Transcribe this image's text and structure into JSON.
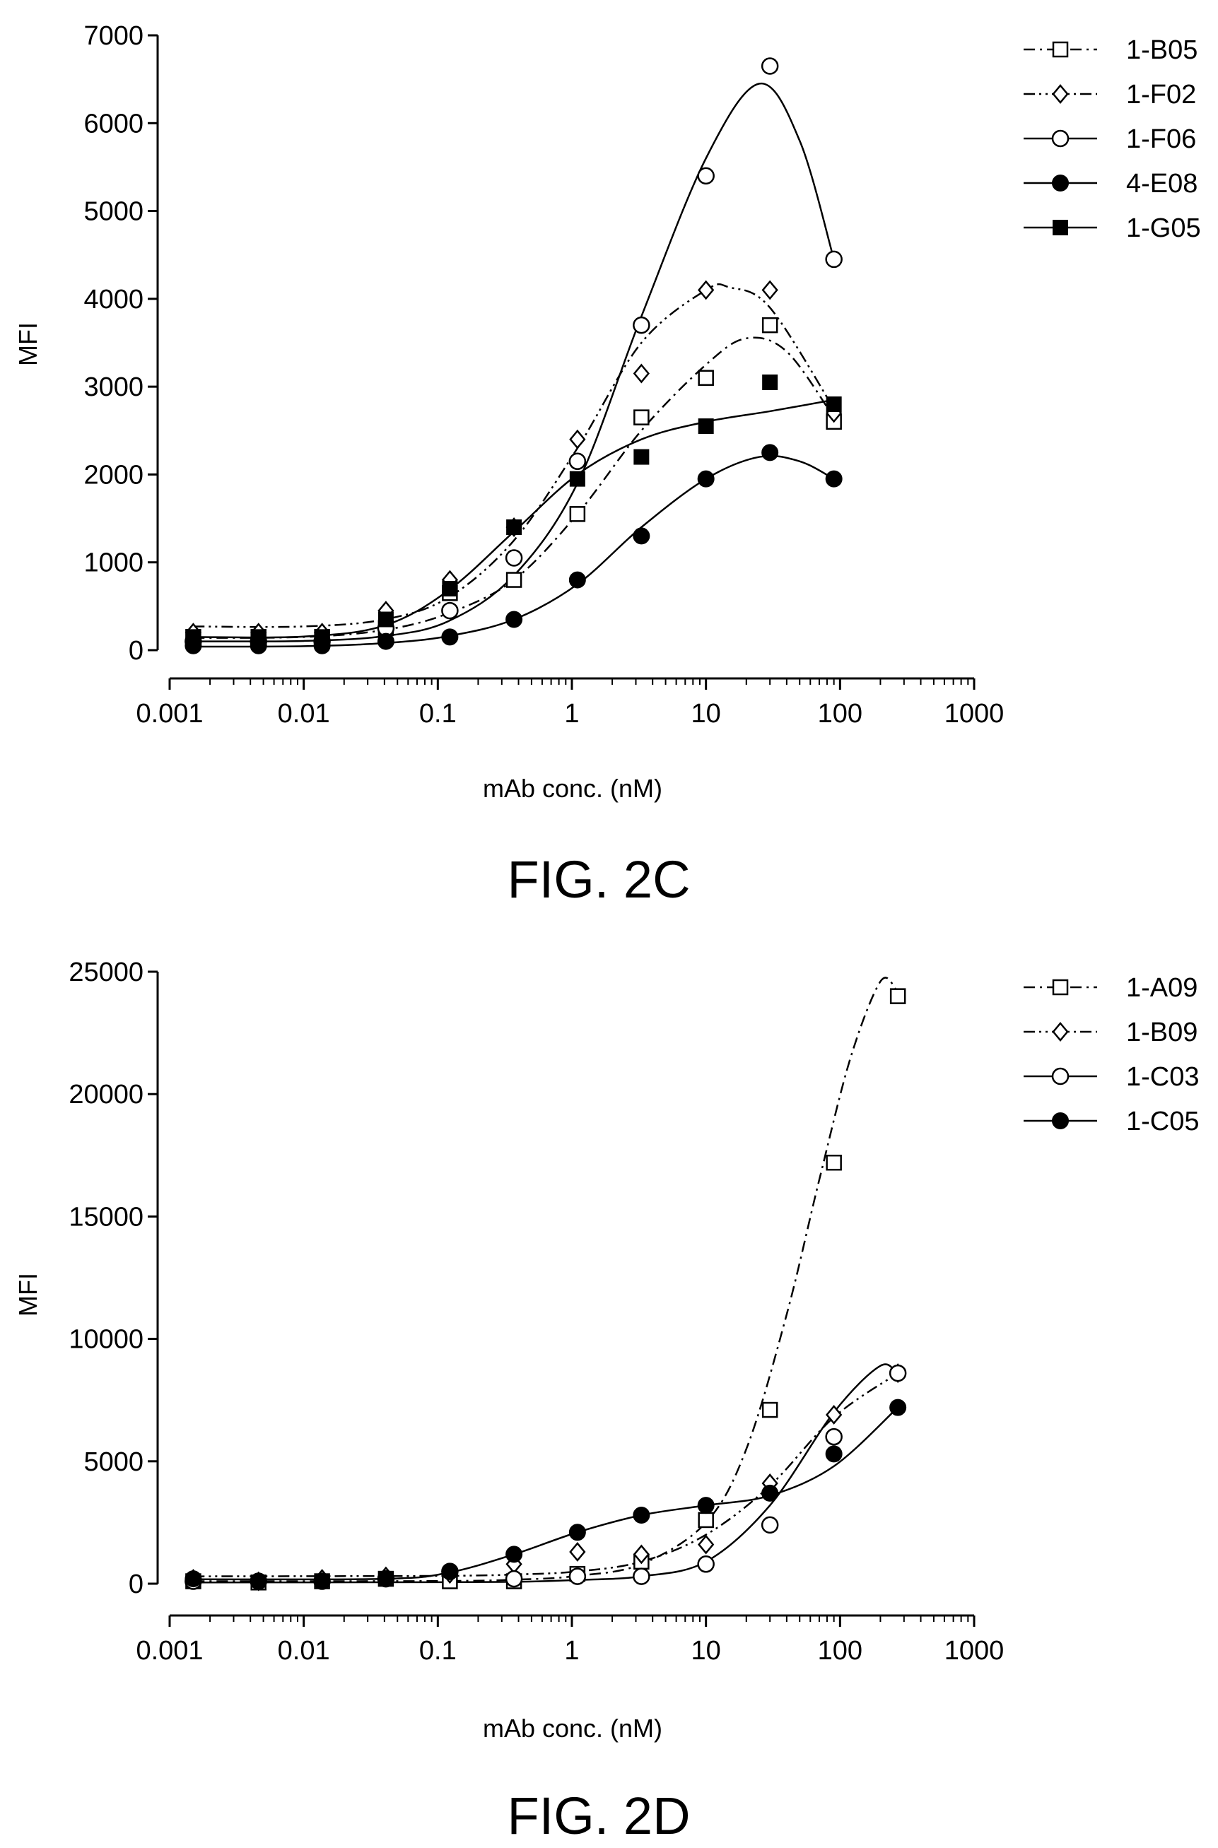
{
  "chart_data": [
    {
      "type": "scatter",
      "caption": "FIG. 2C",
      "xlabel": "mAb conc. (nM)",
      "ylabel": "MFI",
      "x_scale": "log",
      "xlim": [
        0.001,
        1000
      ],
      "ylim": [
        0,
        7000
      ],
      "x_ticks": [
        "0.001",
        "0.01",
        "0.1",
        "1",
        "10",
        "100",
        "1000"
      ],
      "y_ticks": [
        "0",
        "1000",
        "2000",
        "3000",
        "4000",
        "5000",
        "6000",
        "7000"
      ],
      "legend_position": "top-right",
      "grid": false,
      "series": [
        {
          "name": "1-B05",
          "marker": "open-square",
          "line": "dash-dot",
          "x": [
            0.0015,
            0.0046,
            0.0137,
            0.041,
            0.123,
            0.37,
            1.1,
            3.3,
            10,
            30,
            90
          ],
          "y": [
            150,
            150,
            150,
            250,
            650,
            800,
            1550,
            2650,
            3100,
            3700,
            2600
          ],
          "fit": [
            [
              0.0015,
              140
            ],
            [
              0.01,
              150
            ],
            [
              0.04,
              230
            ],
            [
              0.12,
              420
            ],
            [
              0.37,
              800
            ],
            [
              1.1,
              1550
            ],
            [
              3.3,
              2500
            ],
            [
              10,
              3250
            ],
            [
              20,
              3550
            ],
            [
              40,
              3400
            ],
            [
              90,
              2650
            ]
          ]
        },
        {
          "name": "1-F02",
          "marker": "open-diamond",
          "line": "dash-dot-dot",
          "x": [
            0.0015,
            0.0046,
            0.0137,
            0.041,
            0.123,
            0.37,
            1.1,
            3.3,
            10,
            30,
            90
          ],
          "y": [
            200,
            200,
            200,
            450,
            800,
            1400,
            2400,
            3150,
            4100,
            4100,
            2700
          ],
          "fit": [
            [
              0.0015,
              270
            ],
            [
              0.01,
              270
            ],
            [
              0.04,
              350
            ],
            [
              0.12,
              600
            ],
            [
              0.37,
              1250
            ],
            [
              1.1,
              2300
            ],
            [
              3.3,
              3500
            ],
            [
              10,
              4100
            ],
            [
              15,
              4130
            ],
            [
              30,
              3900
            ],
            [
              90,
              2750
            ]
          ]
        },
        {
          "name": "1-F06",
          "marker": "open-circle",
          "line": "solid",
          "x": [
            0.0015,
            0.0046,
            0.0137,
            0.041,
            0.123,
            0.37,
            1.1,
            3.3,
            10,
            30,
            90
          ],
          "y": [
            100,
            100,
            100,
            250,
            450,
            1050,
            2150,
            3700,
            5400,
            6650,
            4450
          ],
          "fit": [
            [
              0.0015,
              100
            ],
            [
              0.01,
              105
            ],
            [
              0.04,
              160
            ],
            [
              0.12,
              330
            ],
            [
              0.37,
              850
            ],
            [
              1.1,
              1900
            ],
            [
              3.3,
              3800
            ],
            [
              10,
              5600
            ],
            [
              25,
              6450
            ],
            [
              50,
              5800
            ],
            [
              90,
              4450
            ]
          ]
        },
        {
          "name": "4-E08",
          "marker": "filled-circle",
          "line": "solid",
          "x": [
            0.0015,
            0.0046,
            0.0137,
            0.041,
            0.123,
            0.37,
            1.1,
            3.3,
            10,
            30,
            90
          ],
          "y": [
            50,
            50,
            50,
            100,
            150,
            350,
            800,
            1300,
            1950,
            2250,
            1950
          ],
          "fit": [
            [
              0.0015,
              40
            ],
            [
              0.01,
              45
            ],
            [
              0.04,
              80
            ],
            [
              0.12,
              160
            ],
            [
              0.37,
              350
            ],
            [
              1.1,
              750
            ],
            [
              3.3,
              1400
            ],
            [
              10,
              1950
            ],
            [
              25,
              2200
            ],
            [
              50,
              2150
            ],
            [
              90,
              1950
            ]
          ]
        },
        {
          "name": "1-G05",
          "marker": "filled-square",
          "line": "solid",
          "x": [
            0.0015,
            0.0046,
            0.0137,
            0.041,
            0.123,
            0.37,
            1.1,
            3.3,
            10,
            30,
            90
          ],
          "y": [
            150,
            150,
            150,
            350,
            700,
            1400,
            1950,
            2200,
            2550,
            3050,
            2800
          ],
          "fit": [
            [
              0.0015,
              150
            ],
            [
              0.01,
              155
            ],
            [
              0.04,
              280
            ],
            [
              0.12,
              680
            ],
            [
              0.37,
              1350
            ],
            [
              1.1,
              2000
            ],
            [
              3.3,
              2400
            ],
            [
              10,
              2600
            ],
            [
              30,
              2720
            ],
            [
              90,
              2850
            ]
          ]
        }
      ]
    },
    {
      "type": "scatter",
      "caption": "FIG. 2D",
      "xlabel": "mAb conc. (nM)",
      "ylabel": "MFI",
      "x_scale": "log",
      "xlim": [
        0.001,
        1000
      ],
      "ylim": [
        0,
        25000
      ],
      "x_ticks": [
        "0.001",
        "0.01",
        "0.1",
        "1",
        "10",
        "100",
        "1000"
      ],
      "y_ticks": [
        "0",
        "5000",
        "10000",
        "15000",
        "20000",
        "25000"
      ],
      "legend_position": "top-right",
      "grid": false,
      "series": [
        {
          "name": "1-A09",
          "marker": "open-square",
          "line": "dash-dot",
          "x": [
            0.0015,
            0.0046,
            0.0137,
            0.041,
            0.123,
            0.37,
            1.1,
            3.3,
            10,
            30,
            90,
            270
          ],
          "y": [
            100,
            50,
            100,
            200,
            100,
            100,
            400,
            900,
            2600,
            7100,
            17200,
            24000
          ],
          "fit": [
            [
              0.0015,
              100
            ],
            [
              0.1,
              110
            ],
            [
              0.4,
              170
            ],
            [
              1.1,
              320
            ],
            [
              3.3,
              800
            ],
            [
              10,
              2500
            ],
            [
              20,
              5500
            ],
            [
              40,
              11000
            ],
            [
              70,
              16500
            ],
            [
              120,
              21500
            ],
            [
              200,
              24600
            ],
            [
              260,
              24300
            ]
          ]
        },
        {
          "name": "1-B09",
          "marker": "open-diamond",
          "line": "dash-dot-dot",
          "x": [
            0.0015,
            0.0046,
            0.0137,
            0.041,
            0.123,
            0.37,
            1.1,
            3.3,
            10,
            30,
            90,
            270
          ],
          "y": [
            200,
            100,
            200,
            300,
            400,
            800,
            1300,
            1200,
            1600,
            4100,
            6900,
            8600
          ],
          "fit": [
            [
              0.0015,
              300
            ],
            [
              0.1,
              320
            ],
            [
              0.4,
              380
            ],
            [
              1.1,
              500
            ],
            [
              3.3,
              900
            ],
            [
              10,
              2000
            ],
            [
              30,
              4000
            ],
            [
              90,
              6800
            ],
            [
              270,
              8600
            ]
          ]
        },
        {
          "name": "1-C03",
          "marker": "open-circle",
          "line": "solid",
          "x": [
            0.0015,
            0.0046,
            0.0137,
            0.041,
            0.123,
            0.37,
            1.1,
            3.3,
            10,
            30,
            90,
            270
          ],
          "y": [
            100,
            100,
            100,
            200,
            500,
            200,
            300,
            300,
            800,
            2400,
            6000,
            8600
          ],
          "fit": [
            [
              0.0015,
              50
            ],
            [
              0.1,
              60
            ],
            [
              0.4,
              80
            ],
            [
              1.1,
              150
            ],
            [
              3.3,
              300
            ],
            [
              10,
              900
            ],
            [
              30,
              3200
            ],
            [
              90,
              7000
            ],
            [
              200,
              8900
            ],
            [
              270,
              8500
            ]
          ]
        },
        {
          "name": "1-C05",
          "marker": "filled-circle",
          "line": "solid",
          "x": [
            0.0015,
            0.0046,
            0.0137,
            0.041,
            0.123,
            0.37,
            1.1,
            3.3,
            10,
            30,
            90,
            270
          ],
          "y": [
            200,
            100,
            100,
            200,
            500,
            1200,
            2100,
            2800,
            3200,
            3700,
            5300,
            7200
          ],
          "fit": [
            [
              0.0015,
              180
            ],
            [
              0.04,
              200
            ],
            [
              0.12,
              450
            ],
            [
              0.37,
              1200
            ],
            [
              1.1,
              2100
            ],
            [
              3.3,
              2800
            ],
            [
              10,
              3200
            ],
            [
              30,
              3600
            ],
            [
              90,
              4800
            ],
            [
              270,
              7200
            ]
          ]
        }
      ]
    }
  ]
}
